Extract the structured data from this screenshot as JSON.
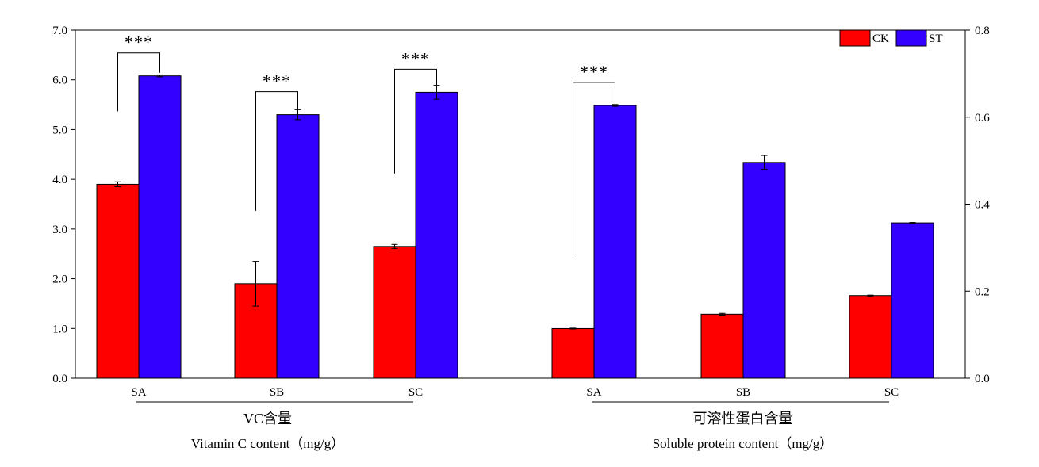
{
  "chart_data": {
    "type": "bar",
    "legend": {
      "placement": "top-right",
      "entries": [
        "CK",
        "ST"
      ]
    },
    "colors": {
      "CK": "#ff0000",
      "ST": "#3300ff"
    },
    "series_names": [
      "CK",
      "ST"
    ],
    "left_axis": {
      "ylim": [
        0,
        7
      ],
      "ticks": [
        "0.0",
        "1.0",
        "2.0",
        "3.0",
        "4.0",
        "5.0",
        "6.0",
        "7.0"
      ]
    },
    "right_axis": {
      "ylim": [
        0,
        0.8
      ],
      "ticks": [
        "0.0",
        "0.2",
        "0.4",
        "0.6",
        "0.8"
      ]
    },
    "groups": [
      {
        "title_cn": "VC含量",
        "title_en": "Vitamin C content（mg/g）",
        "axis": "left",
        "categories": [
          "SA",
          "SB",
          "SC"
        ],
        "CK": [
          3.9,
          1.9,
          2.65
        ],
        "CK_err": [
          0.05,
          0.45,
          0.04
        ],
        "ST": [
          6.08,
          5.3,
          5.75
        ],
        "ST_err": [
          0.02,
          0.1,
          0.14
        ],
        "significance": [
          "***",
          "***",
          "***"
        ]
      },
      {
        "title_cn": "可溶性蛋白含量",
        "title_en": "Soluble protein content（mg/g）",
        "axis": "right",
        "categories": [
          "SA",
          "SB",
          "SC"
        ],
        "CK": [
          0.114,
          0.147,
          0.19
        ],
        "CK_err": [
          0.001,
          0.002,
          0.001
        ],
        "ST": [
          0.627,
          0.496,
          0.357
        ],
        "ST_err": [
          0.002,
          0.016,
          0.001
        ],
        "significance": [
          "***",
          "",
          ""
        ]
      }
    ]
  }
}
